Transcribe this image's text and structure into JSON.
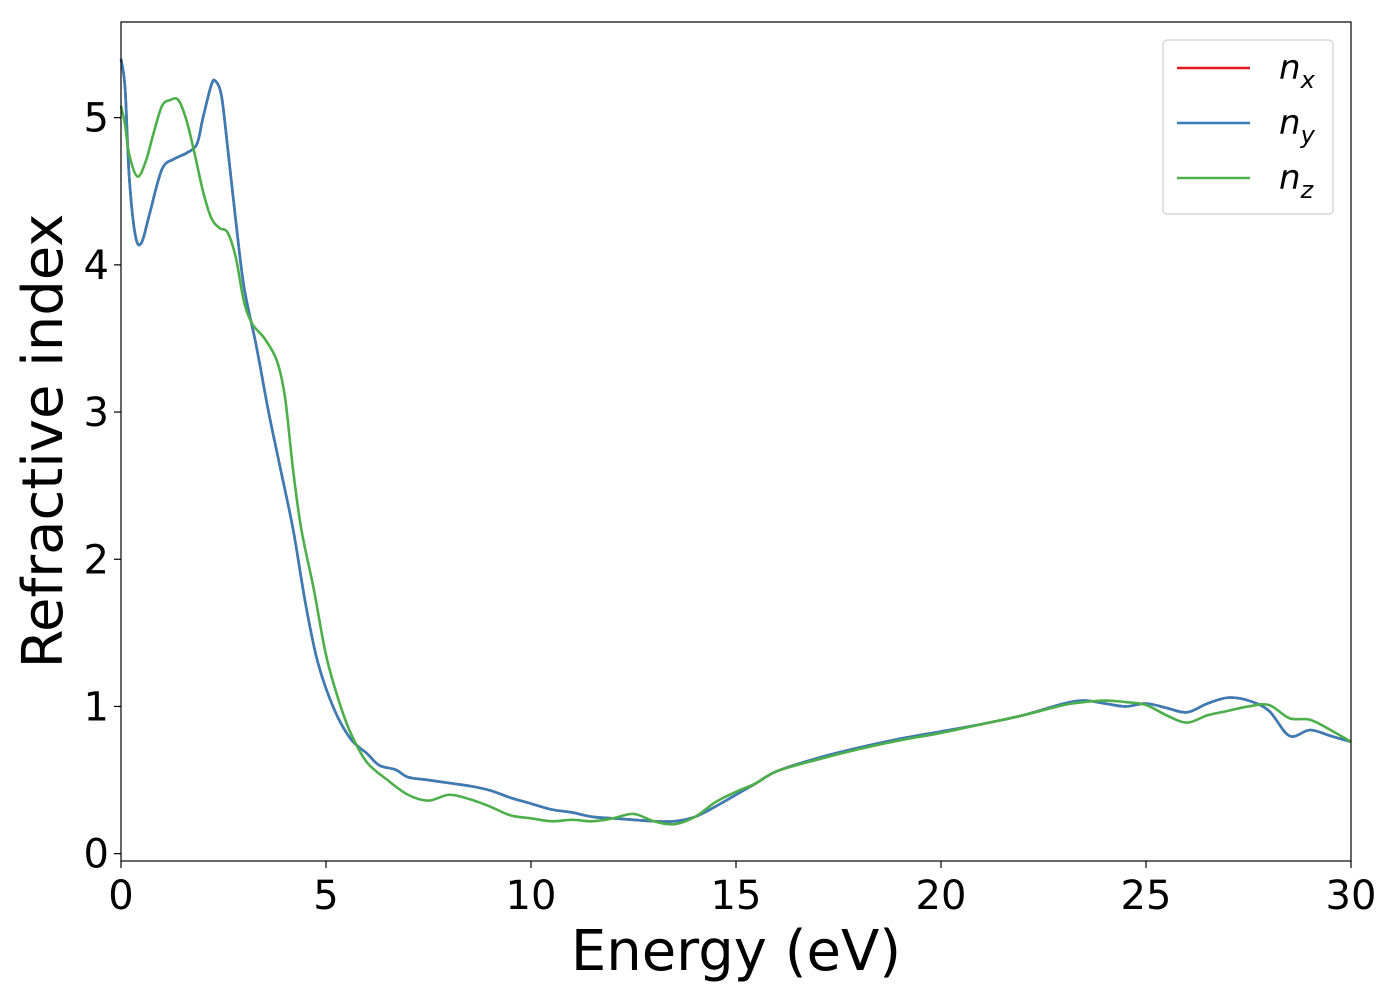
{
  "chart_data": {
    "type": "line",
    "xlabel": "Energy (eV)",
    "ylabel": "Refractive index",
    "xlim": [
      0,
      30
    ],
    "ylim": [
      -0.05,
      5.65
    ],
    "x_ticks": [
      0,
      5,
      10,
      15,
      20,
      25,
      30
    ],
    "x_tick_labels": [
      "0",
      "5",
      "10",
      "15",
      "20",
      "25",
      "30"
    ],
    "y_ticks": [
      0,
      1,
      2,
      3,
      4,
      5
    ],
    "y_tick_labels": [
      "0",
      "1",
      "2",
      "3",
      "4",
      "5"
    ],
    "grid": false,
    "legend_position": "top-right",
    "series": [
      {
        "name": "n",
        "subscript": "x",
        "color": "#e41a1c",
        "points": [
          [
            0,
            5.4
          ],
          [
            0.1,
            5.2
          ],
          [
            0.2,
            4.6
          ],
          [
            0.35,
            4.2
          ],
          [
            0.5,
            4.15
          ],
          [
            0.7,
            4.35
          ],
          [
            1,
            4.65
          ],
          [
            1.3,
            4.72
          ],
          [
            1.6,
            4.76
          ],
          [
            1.85,
            4.82
          ],
          [
            2.0,
            5.0
          ],
          [
            2.2,
            5.22
          ],
          [
            2.3,
            5.25
          ],
          [
            2.45,
            5.15
          ],
          [
            2.6,
            4.8
          ],
          [
            2.8,
            4.3
          ],
          [
            3.0,
            3.85
          ],
          [
            3.3,
            3.45
          ],
          [
            3.6,
            3.0
          ],
          [
            3.9,
            2.6
          ],
          [
            4.2,
            2.2
          ],
          [
            4.5,
            1.7
          ],
          [
            4.8,
            1.3
          ],
          [
            5.2,
            0.98
          ],
          [
            5.6,
            0.78
          ],
          [
            6.0,
            0.68
          ],
          [
            6.3,
            0.6
          ],
          [
            6.7,
            0.57
          ],
          [
            7.0,
            0.52
          ],
          [
            7.5,
            0.5
          ],
          [
            8.0,
            0.48
          ],
          [
            8.5,
            0.46
          ],
          [
            9.0,
            0.43
          ],
          [
            9.5,
            0.38
          ],
          [
            10.0,
            0.34
          ],
          [
            10.5,
            0.3
          ],
          [
            11.0,
            0.28
          ],
          [
            11.5,
            0.25
          ],
          [
            12.0,
            0.24
          ],
          [
            12.5,
            0.23
          ],
          [
            13.0,
            0.22
          ],
          [
            13.5,
            0.22
          ],
          [
            14.0,
            0.25
          ],
          [
            14.5,
            0.32
          ],
          [
            15.0,
            0.4
          ],
          [
            15.5,
            0.48
          ],
          [
            16.0,
            0.56
          ],
          [
            17.0,
            0.65
          ],
          [
            18.0,
            0.72
          ],
          [
            19.0,
            0.78
          ],
          [
            20.0,
            0.83
          ],
          [
            21.0,
            0.88
          ],
          [
            22.0,
            0.94
          ],
          [
            23.0,
            1.02
          ],
          [
            23.5,
            1.04
          ],
          [
            24.0,
            1.02
          ],
          [
            24.5,
            1.0
          ],
          [
            25.0,
            1.02
          ],
          [
            25.5,
            0.99
          ],
          [
            26.0,
            0.96
          ],
          [
            26.5,
            1.02
          ],
          [
            27.0,
            1.06
          ],
          [
            27.5,
            1.04
          ],
          [
            28.0,
            0.97
          ],
          [
            28.5,
            0.8
          ],
          [
            29.0,
            0.84
          ],
          [
            29.5,
            0.8
          ],
          [
            30.0,
            0.76
          ]
        ]
      },
      {
        "name": "n",
        "subscript": "y",
        "color": "#377eb8",
        "points": [
          [
            0,
            5.4
          ],
          [
            0.1,
            5.2
          ],
          [
            0.2,
            4.6
          ],
          [
            0.35,
            4.2
          ],
          [
            0.5,
            4.15
          ],
          [
            0.7,
            4.35
          ],
          [
            1,
            4.65
          ],
          [
            1.3,
            4.72
          ],
          [
            1.6,
            4.76
          ],
          [
            1.85,
            4.82
          ],
          [
            2.0,
            5.0
          ],
          [
            2.2,
            5.22
          ],
          [
            2.3,
            5.25
          ],
          [
            2.45,
            5.15
          ],
          [
            2.6,
            4.8
          ],
          [
            2.8,
            4.3
          ],
          [
            3.0,
            3.85
          ],
          [
            3.3,
            3.45
          ],
          [
            3.6,
            3.0
          ],
          [
            3.9,
            2.6
          ],
          [
            4.2,
            2.2
          ],
          [
            4.5,
            1.7
          ],
          [
            4.8,
            1.3
          ],
          [
            5.2,
            0.98
          ],
          [
            5.6,
            0.78
          ],
          [
            6.0,
            0.68
          ],
          [
            6.3,
            0.6
          ],
          [
            6.7,
            0.57
          ],
          [
            7.0,
            0.52
          ],
          [
            7.5,
            0.5
          ],
          [
            8.0,
            0.48
          ],
          [
            8.5,
            0.46
          ],
          [
            9.0,
            0.43
          ],
          [
            9.5,
            0.38
          ],
          [
            10.0,
            0.34
          ],
          [
            10.5,
            0.3
          ],
          [
            11.0,
            0.28
          ],
          [
            11.5,
            0.25
          ],
          [
            12.0,
            0.24
          ],
          [
            12.5,
            0.23
          ],
          [
            13.0,
            0.22
          ],
          [
            13.5,
            0.22
          ],
          [
            14.0,
            0.25
          ],
          [
            14.5,
            0.32
          ],
          [
            15.0,
            0.4
          ],
          [
            15.5,
            0.48
          ],
          [
            16.0,
            0.56
          ],
          [
            17.0,
            0.65
          ],
          [
            18.0,
            0.72
          ],
          [
            19.0,
            0.78
          ],
          [
            20.0,
            0.83
          ],
          [
            21.0,
            0.88
          ],
          [
            22.0,
            0.94
          ],
          [
            23.0,
            1.02
          ],
          [
            23.5,
            1.04
          ],
          [
            24.0,
            1.02
          ],
          [
            24.5,
            1.0
          ],
          [
            25.0,
            1.02
          ],
          [
            25.5,
            0.99
          ],
          [
            26.0,
            0.96
          ],
          [
            26.5,
            1.02
          ],
          [
            27.0,
            1.06
          ],
          [
            27.5,
            1.04
          ],
          [
            28.0,
            0.97
          ],
          [
            28.5,
            0.8
          ],
          [
            29.0,
            0.84
          ],
          [
            29.5,
            0.8
          ],
          [
            30.0,
            0.76
          ]
        ]
      },
      {
        "name": "n",
        "subscript": "z",
        "color": "#4daf4a",
        "points": [
          [
            0,
            5.08
          ],
          [
            0.1,
            4.95
          ],
          [
            0.2,
            4.75
          ],
          [
            0.4,
            4.6
          ],
          [
            0.6,
            4.7
          ],
          [
            0.8,
            4.9
          ],
          [
            1.0,
            5.08
          ],
          [
            1.2,
            5.12
          ],
          [
            1.4,
            5.12
          ],
          [
            1.6,
            4.98
          ],
          [
            1.8,
            4.75
          ],
          [
            2.0,
            4.5
          ],
          [
            2.2,
            4.32
          ],
          [
            2.4,
            4.25
          ],
          [
            2.6,
            4.22
          ],
          [
            2.8,
            4.05
          ],
          [
            3.0,
            3.75
          ],
          [
            3.2,
            3.6
          ],
          [
            3.5,
            3.5
          ],
          [
            3.8,
            3.35
          ],
          [
            4.0,
            3.1
          ],
          [
            4.2,
            2.6
          ],
          [
            4.4,
            2.2
          ],
          [
            4.7,
            1.8
          ],
          [
            5.0,
            1.35
          ],
          [
            5.3,
            1.05
          ],
          [
            5.6,
            0.82
          ],
          [
            6.0,
            0.62
          ],
          [
            6.5,
            0.5
          ],
          [
            7.0,
            0.4
          ],
          [
            7.5,
            0.36
          ],
          [
            8.0,
            0.4
          ],
          [
            8.5,
            0.37
          ],
          [
            9.0,
            0.32
          ],
          [
            9.5,
            0.26
          ],
          [
            10.0,
            0.24
          ],
          [
            10.5,
            0.22
          ],
          [
            11.0,
            0.23
          ],
          [
            11.5,
            0.22
          ],
          [
            12.0,
            0.24
          ],
          [
            12.5,
            0.27
          ],
          [
            13.0,
            0.22
          ],
          [
            13.5,
            0.2
          ],
          [
            14.0,
            0.25
          ],
          [
            14.5,
            0.35
          ],
          [
            15.0,
            0.42
          ],
          [
            15.5,
            0.48
          ],
          [
            16.0,
            0.56
          ],
          [
            17.0,
            0.64
          ],
          [
            18.0,
            0.71
          ],
          [
            19.0,
            0.77
          ],
          [
            20.0,
            0.82
          ],
          [
            21.0,
            0.88
          ],
          [
            22.0,
            0.94
          ],
          [
            23.0,
            1.01
          ],
          [
            23.5,
            1.03
          ],
          [
            24.0,
            1.04
          ],
          [
            24.5,
            1.03
          ],
          [
            25.0,
            1.01
          ],
          [
            25.5,
            0.94
          ],
          [
            26.0,
            0.89
          ],
          [
            26.5,
            0.94
          ],
          [
            27.0,
            0.97
          ],
          [
            27.5,
            1.0
          ],
          [
            28.0,
            1.01
          ],
          [
            28.5,
            0.92
          ],
          [
            29.0,
            0.91
          ],
          [
            29.5,
            0.84
          ],
          [
            30.0,
            0.76
          ]
        ]
      }
    ]
  }
}
